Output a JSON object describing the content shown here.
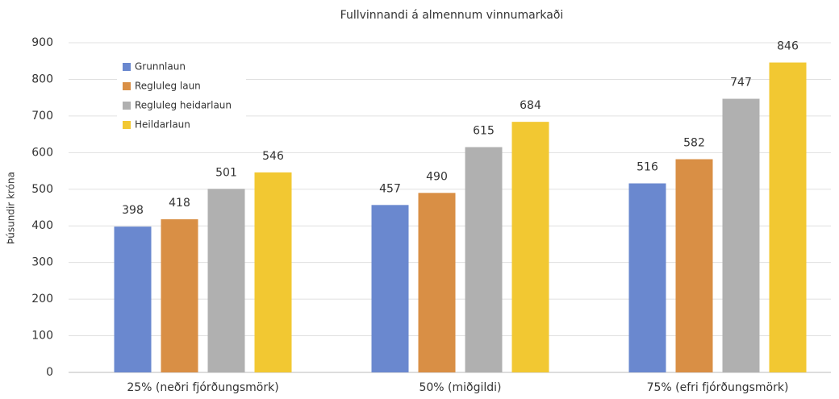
{
  "chart_data": {
    "type": "bar",
    "title": "Fullvinnandi á almennum vinnumarkaði",
    "y_label": "Þúsundir króna",
    "categories": [
      "25% (neðri fjórðungsmörk)",
      "50% (miðgildi)",
      "75% (efri fjórðungsmörk)"
    ],
    "series": [
      {
        "name": "Grunnlaun",
        "color": "#6a88cf",
        "values": [
          398,
          457,
          516
        ]
      },
      {
        "name": "Regluleg laun",
        "color": "#d98f45",
        "values": [
          418,
          490,
          582
        ]
      },
      {
        "name": "Regluleg heidarlaun",
        "color": "#b0b0b0",
        "values": [
          501,
          615,
          747
        ]
      },
      {
        "name": "Heildarlaun",
        "color": "#f2c832",
        "values": [
          546,
          684,
          846
        ]
      }
    ],
    "ylim": [
      0,
      900
    ],
    "yticks": [
      0,
      100,
      200,
      300,
      400,
      500,
      600,
      700,
      800,
      900
    ],
    "grid": true,
    "legend": "top-left",
    "data_labels": true
  }
}
